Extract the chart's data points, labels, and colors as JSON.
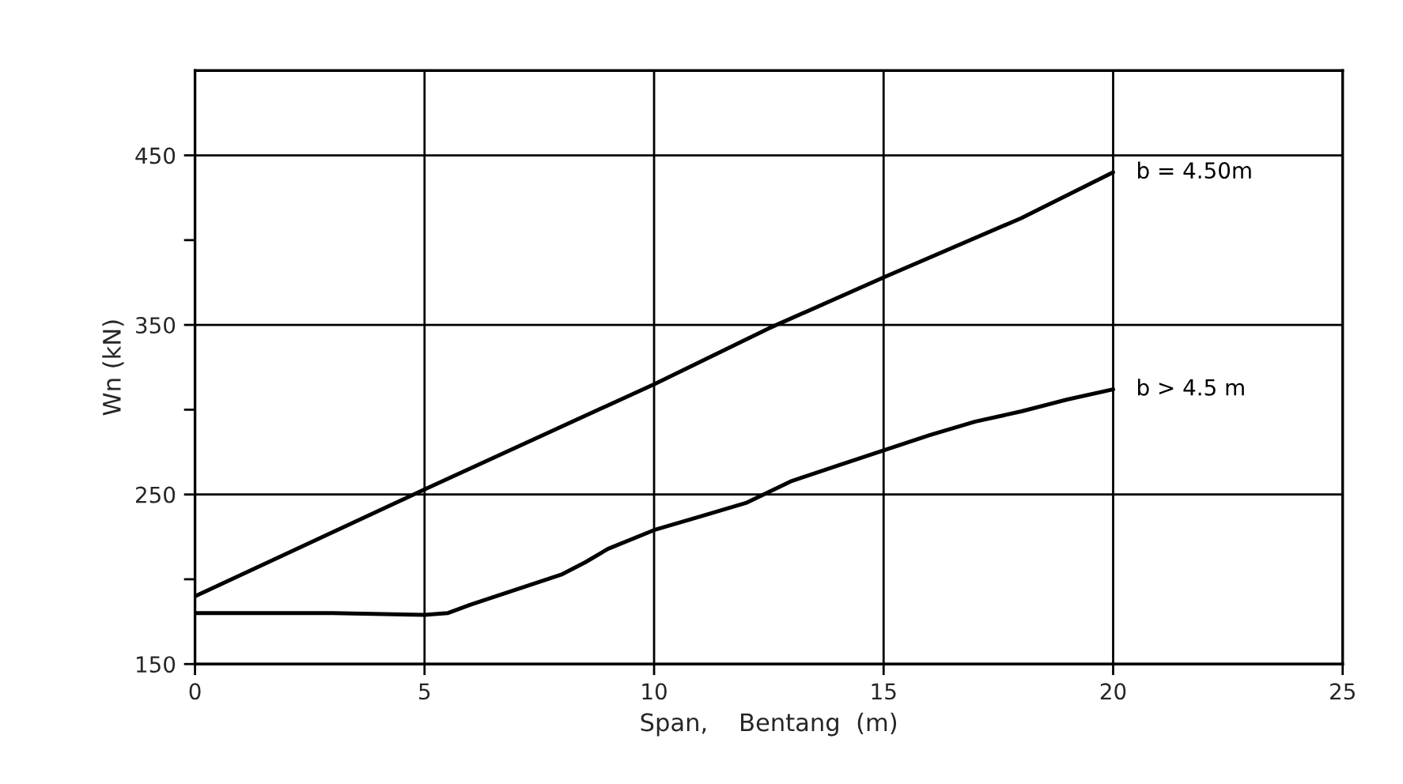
{
  "chart_data": {
    "type": "line",
    "xlabel": "Span,    Bentang  (m)",
    "ylabel": "Wn (kN)",
    "xlim": [
      0,
      25
    ],
    "xticks": [
      0,
      5,
      10,
      15,
      20,
      25
    ],
    "ylim": [
      150,
      500
    ],
    "yticks": [
      150,
      {
        "value": 200,
        "label": null
      },
      250,
      {
        "value": 300,
        "label": null
      },
      350,
      {
        "value": 400,
        "label": null
      },
      450
    ],
    "grid": true,
    "legend": false,
    "marker": "none",
    "line_style": "solid",
    "series": [
      {
        "name": "b = 4.50m",
        "color": "#000000",
        "x": [
          0,
          5,
          10,
          12.5,
          15,
          18,
          20
        ],
        "values": [
          190,
          253,
          315,
          348,
          378,
          413,
          440
        ]
      },
      {
        "name": "b > 4.5 m",
        "color": "#000000",
        "x": [
          0,
          3,
          5,
          5.5,
          6,
          7,
          8,
          8.5,
          9,
          10,
          11,
          12,
          13,
          14,
          15,
          16,
          17,
          18,
          19,
          20
        ],
        "values": [
          180,
          180,
          179,
          180,
          185,
          194,
          203,
          210,
          218,
          229,
          237,
          245,
          258,
          267,
          276,
          285,
          293,
          299,
          306,
          312
        ]
      }
    ]
  }
}
